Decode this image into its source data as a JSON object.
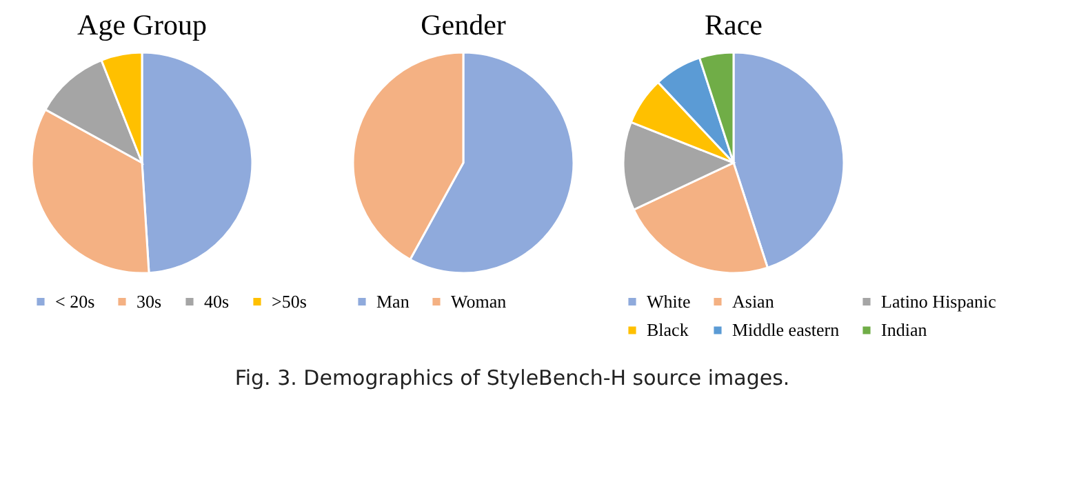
{
  "chart_data": [
    {
      "type": "pie",
      "title": "Age Group",
      "categories": [
        "< 20s",
        "30s",
        "40s",
        ">50s"
      ],
      "values": [
        49,
        34,
        11,
        6
      ],
      "colors": [
        "#8faadc",
        "#f4b183",
        "#a5a5a5",
        "#ffc000"
      ],
      "legend": "bottom",
      "annotations": [
        "Fig. 3.  Demographics of StyleBench-H source images."
      ]
    },
    {
      "type": "pie",
      "title": "Gender",
      "categories": [
        "Man",
        "Woman"
      ],
      "values": [
        58,
        42
      ],
      "colors": [
        "#8faadc",
        "#f4b183"
      ],
      "legend": "bottom"
    },
    {
      "type": "pie",
      "title": "Race",
      "categories": [
        "White",
        "Asian",
        "Latino Hispanic",
        "Black",
        "Middle eastern",
        "Indian"
      ],
      "values": [
        45,
        23,
        13,
        7,
        7,
        5
      ],
      "colors": [
        "#8faadc",
        "#f4b183",
        "#a5a5a5",
        "#ffc000",
        "#5b9bd5",
        "#70ad47"
      ],
      "legend": "bottom"
    }
  ]
}
